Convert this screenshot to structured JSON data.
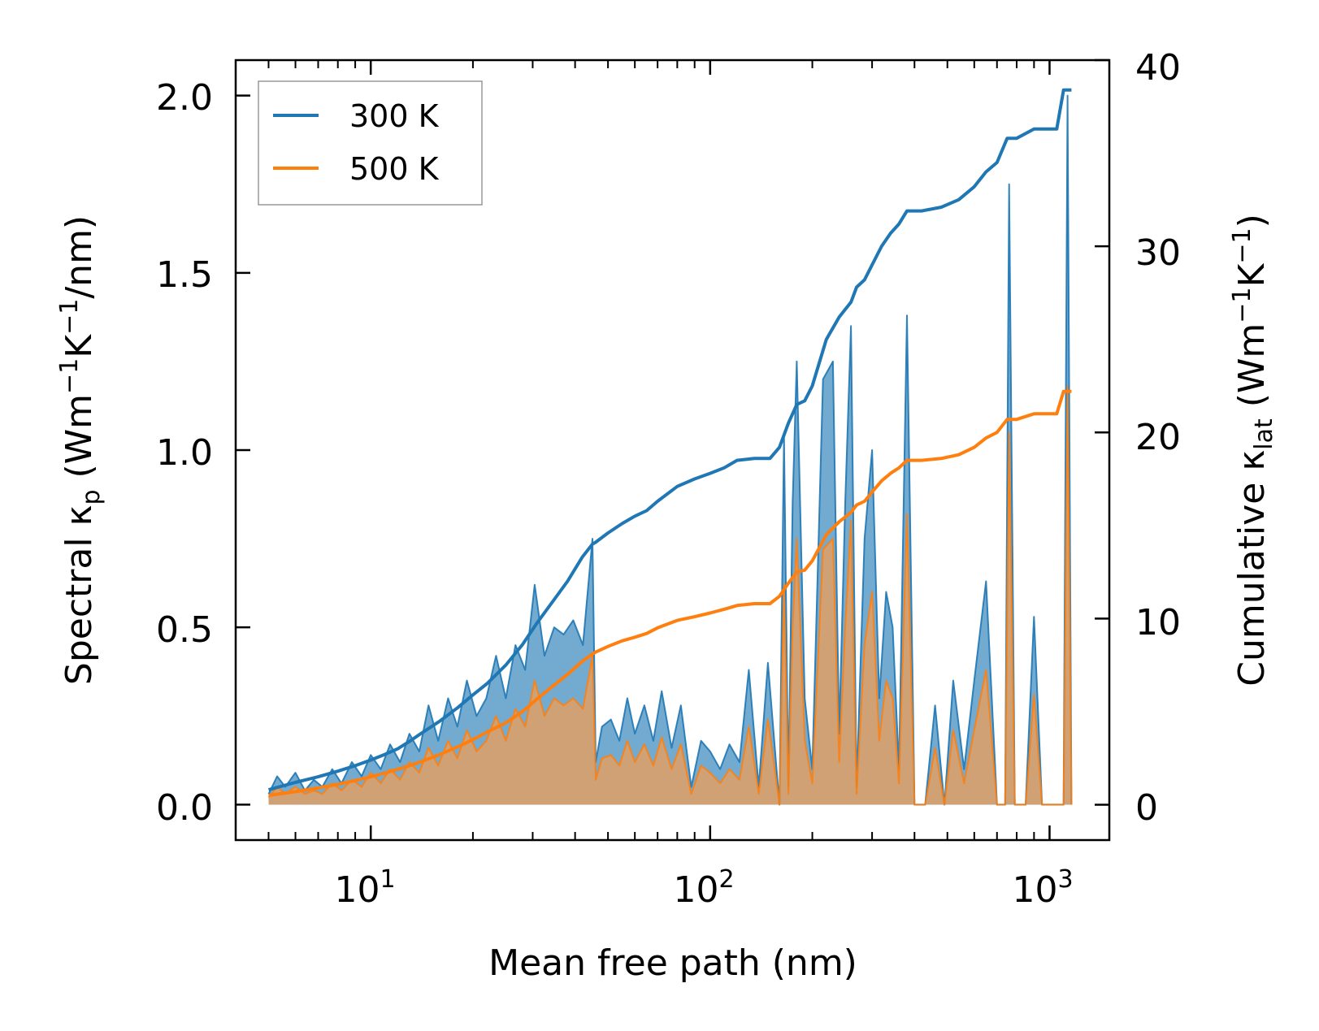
{
  "chart_data": {
    "type": "line",
    "xlabel": "Mean free path (nm)",
    "ylabel_left": {
      "prefix": "Spectral κ",
      "sub": "p",
      "units_open": " (Wm",
      "sup1": "−1",
      "mid": "K",
      "sup2": "−1",
      "units_close": "/nm)"
    },
    "ylabel_right": {
      "prefix": "Cumulative κ",
      "sub": "lat",
      "units_open": " (Wm",
      "sup1": "−1",
      "mid": "K",
      "sup2": "−1",
      "units_close": ")"
    },
    "x_scale": "log",
    "xlim": [
      4.0,
      1500
    ],
    "ylim_left": [
      -0.1,
      2.1
    ],
    "ylim_right": [
      -1.9,
      40
    ],
    "x_ticks": [
      {
        "value": 10,
        "base": "10",
        "exp": "1"
      },
      {
        "value": 100,
        "base": "10",
        "exp": "2"
      },
      {
        "value": 1000,
        "base": "10",
        "exp": "3"
      }
    ],
    "y_ticks_left": [
      {
        "value": 0.0,
        "label": "0.0"
      },
      {
        "value": 0.5,
        "label": "0.5"
      },
      {
        "value": 1.0,
        "label": "1.0"
      },
      {
        "value": 1.5,
        "label": "1.5"
      },
      {
        "value": 2.0,
        "label": "2.0"
      }
    ],
    "y_ticks_right": [
      {
        "value": 0,
        "label": "0"
      },
      {
        "value": 10,
        "label": "10"
      },
      {
        "value": 20,
        "label": "20"
      },
      {
        "value": 30,
        "label": "30"
      },
      {
        "value": 40,
        "label": "40"
      }
    ],
    "legend": {
      "position": "top-left",
      "entries": [
        {
          "label": "300 K",
          "color": "#1f77b4"
        },
        {
          "label": "500 K",
          "color": "#ff7f0e"
        }
      ]
    },
    "colors": {
      "series_300": "#1f77b4",
      "series_500": "#ff7f0e",
      "fill_300": "#5b9bc8",
      "fill_500": "#d4a070"
    },
    "spectral_300K": {
      "x": [
        5.0,
        5.3,
        5.6,
        6.0,
        6.4,
        6.8,
        7.2,
        7.7,
        8.2,
        8.8,
        9.4,
        10.0,
        10.7,
        11.4,
        12.2,
        13.0,
        13.9,
        14.8,
        15.8,
        16.9,
        18.0,
        19.2,
        20.5,
        21.9,
        23.4,
        25.0,
        26.7,
        28.5,
        30.4,
        32.5,
        34.7,
        37.0,
        39.5,
        42.2,
        45.0,
        46.0,
        48.0,
        51.0,
        54.0,
        57.0,
        60.0,
        64.0,
        68.0,
        72.0,
        77.0,
        82.0,
        88.0,
        94.0,
        100.0,
        107.0,
        114.0,
        122.0,
        130.0,
        139.0,
        148.0,
        160.0,
        165.0,
        170.0,
        175.0,
        180.0,
        190.0,
        200.0,
        215.0,
        230.0,
        240.0,
        250.0,
        260.0,
        270.0,
        285.0,
        300.0,
        315.0,
        330.0,
        345.0,
        360.0,
        380.0,
        400.0,
        430.0,
        460.0,
        490.0,
        520.0,
        560.0,
        600.0,
        650.0,
        700.0,
        740.0,
        760.0,
        790.0,
        850.0,
        900.0,
        950.0,
        1000.0,
        1050.0,
        1100.0,
        1130.0,
        1160.0
      ],
      "y": [
        0.03,
        0.08,
        0.05,
        0.09,
        0.04,
        0.07,
        0.05,
        0.1,
        0.06,
        0.12,
        0.08,
        0.14,
        0.1,
        0.17,
        0.12,
        0.2,
        0.15,
        0.28,
        0.18,
        0.3,
        0.22,
        0.35,
        0.25,
        0.3,
        0.42,
        0.3,
        0.45,
        0.38,
        0.62,
        0.42,
        0.5,
        0.48,
        0.52,
        0.45,
        0.75,
        0.12,
        0.22,
        0.24,
        0.18,
        0.3,
        0.2,
        0.28,
        0.18,
        0.32,
        0.16,
        0.28,
        0.05,
        0.18,
        0.15,
        0.1,
        0.17,
        0.12,
        0.38,
        0.05,
        0.4,
        0.0,
        1.04,
        0.05,
        0.85,
        1.25,
        0.3,
        0.1,
        1.2,
        1.25,
        0.2,
        0.85,
        1.35,
        0.05,
        0.75,
        1.0,
        0.3,
        0.6,
        0.5,
        0.1,
        1.38,
        0.0,
        0.0,
        0.28,
        0.0,
        0.35,
        0.1,
        0.35,
        0.63,
        0.0,
        0.0,
        1.75,
        0.0,
        0.0,
        0.53,
        0.0,
        0.0,
        0.0,
        0.0,
        2.0,
        0.0
      ]
    },
    "spectral_500K": {
      "x": [
        5.0,
        5.3,
        5.6,
        6.0,
        6.4,
        6.8,
        7.2,
        7.7,
        8.2,
        8.8,
        9.4,
        10.0,
        10.7,
        11.4,
        12.2,
        13.0,
        13.9,
        14.8,
        15.8,
        16.9,
        18.0,
        19.2,
        20.5,
        21.9,
        23.4,
        25.0,
        26.7,
        28.5,
        30.4,
        32.5,
        34.7,
        37.0,
        39.5,
        42.2,
        45.0,
        46.0,
        48.0,
        51.0,
        54.0,
        57.0,
        60.0,
        64.0,
        68.0,
        72.0,
        77.0,
        82.0,
        88.0,
        94.0,
        100.0,
        107.0,
        114.0,
        122.0,
        130.0,
        139.0,
        148.0,
        160.0,
        165.0,
        170.0,
        175.0,
        180.0,
        190.0,
        200.0,
        215.0,
        230.0,
        240.0,
        250.0,
        260.0,
        270.0,
        285.0,
        300.0,
        315.0,
        330.0,
        345.0,
        360.0,
        380.0,
        400.0,
        430.0,
        460.0,
        490.0,
        520.0,
        560.0,
        600.0,
        650.0,
        700.0,
        740.0,
        760.0,
        790.0,
        850.0,
        900.0,
        950.0,
        1000.0,
        1050.0,
        1100.0,
        1130.0,
        1160.0
      ],
      "y": [
        0.02,
        0.05,
        0.03,
        0.05,
        0.03,
        0.04,
        0.03,
        0.06,
        0.04,
        0.07,
        0.05,
        0.09,
        0.06,
        0.1,
        0.07,
        0.12,
        0.09,
        0.16,
        0.11,
        0.18,
        0.13,
        0.21,
        0.15,
        0.18,
        0.25,
        0.18,
        0.27,
        0.22,
        0.35,
        0.25,
        0.3,
        0.28,
        0.3,
        0.27,
        0.42,
        0.07,
        0.13,
        0.14,
        0.11,
        0.18,
        0.12,
        0.17,
        0.11,
        0.19,
        0.1,
        0.17,
        0.03,
        0.11,
        0.09,
        0.06,
        0.1,
        0.07,
        0.22,
        0.03,
        0.24,
        0.0,
        0.62,
        0.03,
        0.5,
        0.75,
        0.18,
        0.06,
        0.72,
        0.75,
        0.12,
        0.5,
        0.8,
        0.03,
        0.45,
        0.6,
        0.18,
        0.35,
        0.3,
        0.06,
        0.82,
        0.0,
        0.0,
        0.16,
        0.0,
        0.21,
        0.06,
        0.21,
        0.38,
        0.0,
        0.0,
        1.05,
        0.0,
        0.0,
        0.31,
        0.0,
        0.0,
        0.0,
        0.0,
        1.18,
        0.0
      ]
    },
    "cumulative_300K": {
      "x": [
        5.0,
        6.0,
        7.0,
        8.0,
        9.0,
        10.0,
        11.0,
        12.0,
        13.0,
        14.0,
        16.0,
        18.0,
        20.0,
        22.0,
        25.0,
        28.0,
        31.0,
        34.0,
        38.0,
        42.0,
        45.0,
        46.0,
        50.0,
        55.0,
        60.0,
        65.0,
        70.0,
        80.0,
        90.0,
        100.0,
        110.0,
        120.0,
        135.0,
        150.0,
        160.0,
        170.0,
        180.0,
        190.0,
        200.0,
        220.0,
        240.0,
        260.0,
        270.0,
        285.0,
        300.0,
        320.0,
        340.0,
        360.0,
        380.0,
        420.0,
        480.0,
        540.0,
        600.0,
        650.0,
        700.0,
        750.0,
        800.0,
        900.0,
        1000.0,
        1050.0,
        1100.0,
        1130.0,
        1160.0
      ],
      "y": [
        0.8,
        1.2,
        1.5,
        1.8,
        2.1,
        2.4,
        2.7,
        3.0,
        3.4,
        3.8,
        4.5,
        5.2,
        5.9,
        6.5,
        7.5,
        8.6,
        9.8,
        10.8,
        12.0,
        13.3,
        14.0,
        14.1,
        14.6,
        15.1,
        15.5,
        15.8,
        16.3,
        17.1,
        17.5,
        17.8,
        18.1,
        18.5,
        18.6,
        18.6,
        19.2,
        20.5,
        21.5,
        21.7,
        22.5,
        25.0,
        26.2,
        27.0,
        27.8,
        28.2,
        29.0,
        30.0,
        30.7,
        31.2,
        31.9,
        31.9,
        32.1,
        32.5,
        33.2,
        34.0,
        34.5,
        35.8,
        35.8,
        36.3,
        36.3,
        36.3,
        38.4,
        38.4,
        38.4
      ]
    },
    "cumulative_500K": {
      "x": [
        5.0,
        6.0,
        7.0,
        8.0,
        9.0,
        10.0,
        11.0,
        12.0,
        13.0,
        14.0,
        16.0,
        18.0,
        20.0,
        22.0,
        25.0,
        28.0,
        31.0,
        34.0,
        38.0,
        42.0,
        45.0,
        46.0,
        50.0,
        55.0,
        60.0,
        65.0,
        70.0,
        80.0,
        90.0,
        100.0,
        110.0,
        120.0,
        135.0,
        150.0,
        160.0,
        170.0,
        180.0,
        190.0,
        200.0,
        220.0,
        240.0,
        260.0,
        270.0,
        285.0,
        300.0,
        320.0,
        340.0,
        360.0,
        380.0,
        420.0,
        480.0,
        540.0,
        600.0,
        650.0,
        700.0,
        750.0,
        800.0,
        900.0,
        1000.0,
        1050.0,
        1100.0,
        1130.0,
        1160.0
      ],
      "y": [
        0.5,
        0.7,
        0.9,
        1.1,
        1.3,
        1.5,
        1.7,
        1.9,
        2.1,
        2.3,
        2.7,
        3.1,
        3.5,
        3.9,
        4.4,
        5.0,
        5.7,
        6.3,
        7.0,
        7.7,
        8.1,
        8.2,
        8.5,
        8.8,
        9.0,
        9.2,
        9.5,
        9.9,
        10.1,
        10.3,
        10.5,
        10.7,
        10.8,
        10.8,
        11.2,
        11.9,
        12.5,
        12.6,
        13.1,
        14.5,
        15.2,
        15.7,
        16.1,
        16.3,
        16.8,
        17.4,
        17.8,
        18.1,
        18.5,
        18.5,
        18.6,
        18.8,
        19.2,
        19.7,
        20.0,
        20.7,
        20.7,
        21.0,
        21.0,
        21.0,
        22.2,
        22.2,
        22.2
      ]
    }
  }
}
